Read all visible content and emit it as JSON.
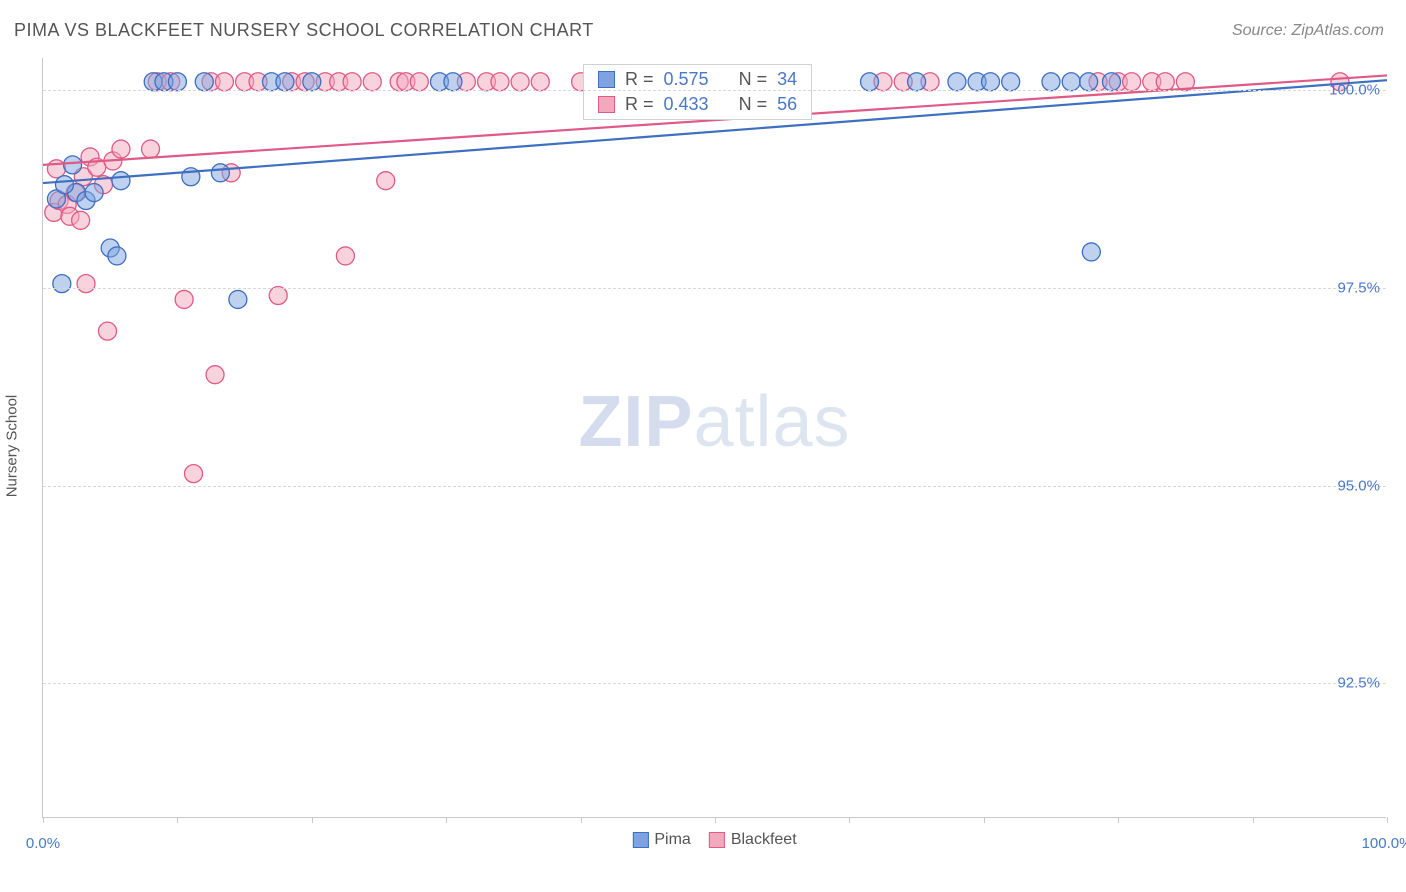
{
  "title": "PIMA VS BLACKFEET NURSERY SCHOOL CORRELATION CHART",
  "source": "Source: ZipAtlas.com",
  "watermark_bold": "ZIP",
  "watermark_rest": "atlas",
  "chart": {
    "type": "scatter",
    "background_color": "#ffffff",
    "grid_color": "#d8d8d8",
    "axis_color": "#c9c9c9",
    "tick_label_color": "#4a78c8",
    "axis_label_color": "#555555",
    "ylabel": "Nursery School",
    "xlim": [
      0,
      100
    ],
    "ylim": [
      90.8,
      100.4
    ],
    "ytick_labels": [
      "92.5%",
      "95.0%",
      "97.5%",
      "100.0%"
    ],
    "ytick_values": [
      92.5,
      95.0,
      97.5,
      100.0
    ],
    "xtick_positions": [
      0,
      10,
      20,
      30,
      40,
      50,
      60,
      70,
      80,
      90,
      100
    ],
    "x_first_label": "0.0%",
    "x_last_label": "100.0%",
    "marker_radius": 9,
    "marker_opacity": 0.5,
    "line_width": 2.2,
    "series": [
      {
        "name": "Pima",
        "color_fill": "#7ea3e0",
        "color_stroke": "#3e6fc1",
        "R": "0.575",
        "N": "34",
        "trend": {
          "x1": 0,
          "y1": 98.82,
          "x2": 100,
          "y2": 100.12
        },
        "points": [
          [
            2.2,
            99.05
          ],
          [
            1.0,
            98.62
          ],
          [
            2.5,
            98.7
          ],
          [
            3.2,
            98.6
          ],
          [
            1.6,
            98.8
          ],
          [
            3.8,
            98.7
          ],
          [
            1.4,
            97.55
          ],
          [
            5.0,
            98.0
          ],
          [
            5.5,
            97.9
          ],
          [
            5.8,
            98.85
          ],
          [
            8.2,
            100.1
          ],
          [
            9.0,
            100.1
          ],
          [
            10.0,
            100.1
          ],
          [
            11.0,
            98.9
          ],
          [
            12.0,
            100.1
          ],
          [
            13.2,
            98.95
          ],
          [
            14.5,
            97.35
          ],
          [
            17.0,
            100.1
          ],
          [
            18.0,
            100.1
          ],
          [
            20.0,
            100.1
          ],
          [
            29.5,
            100.1
          ],
          [
            30.5,
            100.1
          ],
          [
            44.0,
            100.1
          ],
          [
            61.5,
            100.1
          ],
          [
            65.0,
            100.1
          ],
          [
            68.0,
            100.1
          ],
          [
            69.5,
            100.1
          ],
          [
            70.5,
            100.1
          ],
          [
            72.0,
            100.1
          ],
          [
            75.0,
            100.1
          ],
          [
            76.5,
            100.1
          ],
          [
            77.8,
            100.1
          ],
          [
            79.5,
            100.1
          ],
          [
            78.0,
            97.95
          ]
        ]
      },
      {
        "name": "Blackfeet",
        "color_fill": "#f2a8bd",
        "color_stroke": "#e05a86",
        "R": "0.433",
        "N": "56",
        "trend": {
          "x1": 0,
          "y1": 99.05,
          "x2": 100,
          "y2": 100.18
        },
        "points": [
          [
            0.8,
            98.45
          ],
          [
            1.2,
            98.6
          ],
          [
            1.8,
            98.55
          ],
          [
            2.0,
            98.4
          ],
          [
            2.4,
            98.7
          ],
          [
            2.8,
            98.35
          ],
          [
            1.0,
            99.0
          ],
          [
            3.0,
            98.9
          ],
          [
            3.5,
            99.15
          ],
          [
            4.0,
            99.02
          ],
          [
            4.5,
            98.8
          ],
          [
            5.2,
            99.1
          ],
          [
            5.8,
            99.25
          ],
          [
            3.2,
            97.55
          ],
          [
            4.8,
            96.95
          ],
          [
            8.0,
            99.25
          ],
          [
            8.5,
            100.1
          ],
          [
            9.5,
            100.1
          ],
          [
            10.5,
            97.35
          ],
          [
            12.5,
            100.1
          ],
          [
            12.8,
            96.4
          ],
          [
            13.5,
            100.1
          ],
          [
            14.0,
            98.95
          ],
          [
            15.0,
            100.1
          ],
          [
            16.0,
            100.1
          ],
          [
            17.5,
            97.4
          ],
          [
            11.2,
            95.15
          ],
          [
            18.5,
            100.1
          ],
          [
            19.5,
            100.1
          ],
          [
            21.0,
            100.1
          ],
          [
            22.0,
            100.1
          ],
          [
            22.5,
            97.9
          ],
          [
            23.0,
            100.1
          ],
          [
            24.5,
            100.1
          ],
          [
            25.5,
            98.85
          ],
          [
            26.5,
            100.1
          ],
          [
            27.0,
            100.1
          ],
          [
            28.0,
            100.1
          ],
          [
            31.5,
            100.1
          ],
          [
            33.0,
            100.1
          ],
          [
            34.0,
            100.1
          ],
          [
            35.5,
            100.1
          ],
          [
            37.0,
            100.1
          ],
          [
            40.0,
            100.1
          ],
          [
            43.0,
            100.1
          ],
          [
            46.0,
            100.1
          ],
          [
            62.5,
            100.1
          ],
          [
            64.0,
            100.1
          ],
          [
            66.0,
            100.1
          ],
          [
            78.5,
            100.1
          ],
          [
            80.0,
            100.1
          ],
          [
            81.0,
            100.1
          ],
          [
            82.5,
            100.1
          ],
          [
            83.5,
            100.1
          ],
          [
            85.0,
            100.1
          ],
          [
            96.5,
            100.1
          ]
        ]
      }
    ],
    "legend_labels": {
      "pima": "Pima",
      "blackfeet": "Blackfeet"
    },
    "stats_box": {
      "R_label": "R =",
      "N_label": "N ="
    }
  }
}
